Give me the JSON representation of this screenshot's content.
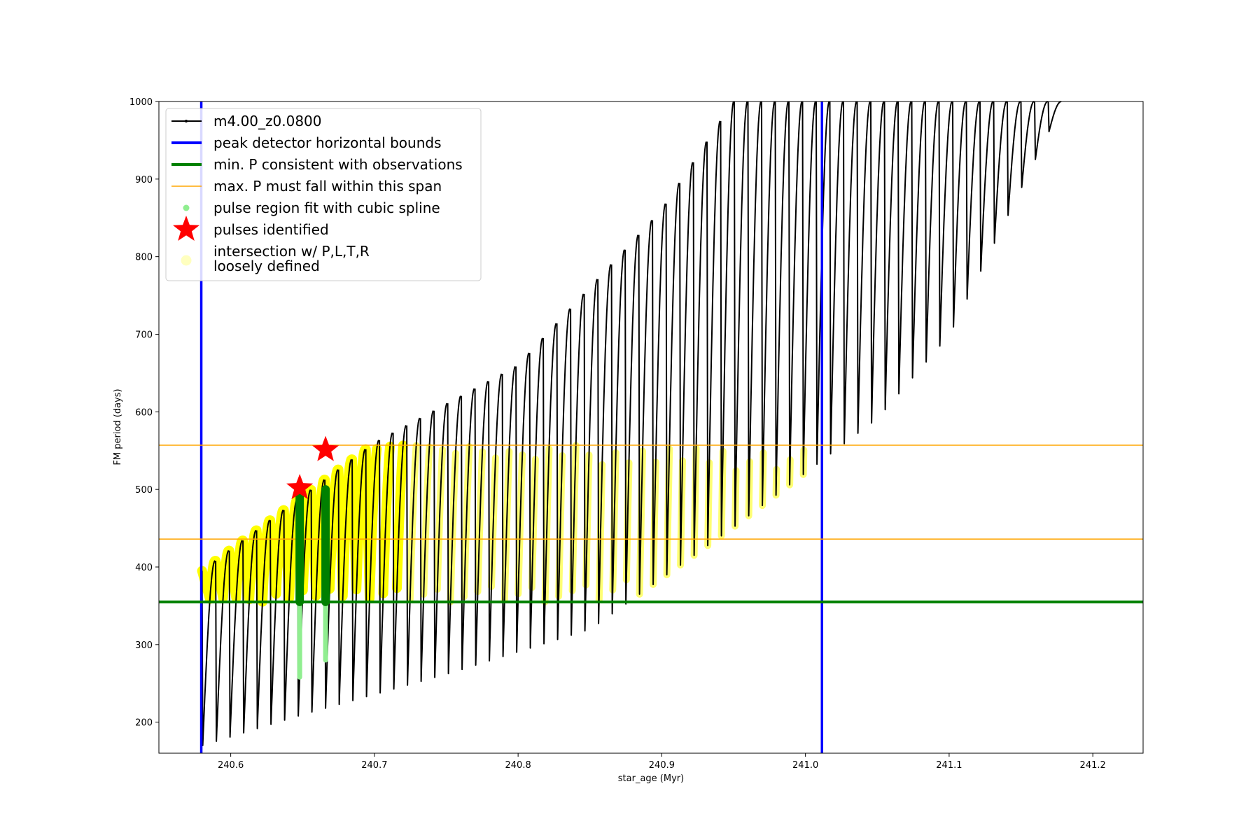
{
  "chart_data": {
    "type": "line",
    "title": "",
    "xlabel": "star_age (Myr)",
    "ylabel": "FM period (days)",
    "xlim": [
      240.55,
      241.235
    ],
    "ylim": [
      160,
      1000
    ],
    "x_ticks": [
      240.6,
      240.7,
      240.8,
      240.9,
      241.0,
      241.1,
      241.2
    ],
    "x_tick_labels": [
      "240.6",
      "240.7",
      "240.8",
      "240.9",
      "241.0",
      "241.1",
      "241.2"
    ],
    "y_ticks": [
      200,
      300,
      400,
      500,
      600,
      700,
      800,
      900,
      1000
    ],
    "y_tick_labels": [
      "200",
      "300",
      "400",
      "500",
      "600",
      "700",
      "800",
      "900",
      "1000"
    ],
    "grid": false,
    "legend_position": "top-left",
    "colors": {
      "track": "#000000",
      "bounds": "#0000ff",
      "min_period": "#008000",
      "max_period": "#ffa500",
      "spline": "#90ee90",
      "spline_dark": "#008000",
      "pulses": "#ff0000",
      "intersection": "#ffff00"
    },
    "series": [
      {
        "name": "m4.00_z0.0800",
        "kind": "pulse_track",
        "trend_low": [
          [
            240.58,
            170
          ],
          [
            240.65,
            210
          ],
          [
            240.75,
            262
          ],
          [
            240.85,
            320
          ],
          [
            240.95,
            452
          ],
          [
            241.05,
            592
          ],
          [
            241.1,
            700
          ],
          [
            241.17,
            965
          ]
        ],
        "trend_high": [
          [
            240.58,
            395
          ],
          [
            240.7,
            560
          ],
          [
            240.8,
            660
          ],
          [
            240.9,
            860
          ],
          [
            240.95,
            1000
          ],
          [
            241.17,
            1000
          ]
        ],
        "pulse_spacing_myr": 0.0095
      },
      {
        "name": "peak detector horizontal bounds",
        "kind": "vline",
        "x": [
          240.5795,
          241.0115
        ]
      },
      {
        "name": "min. P consistent with observations",
        "kind": "hline",
        "y": [
          355
        ]
      },
      {
        "name": "max. P must fall within this span",
        "kind": "hline",
        "y": [
          436,
          557
        ]
      },
      {
        "name": "pulse region fit with cubic spline",
        "kind": "vsegments",
        "segments": [
          [
            240.648,
            258,
            500
          ],
          [
            240.666,
            280,
            500
          ]
        ]
      },
      {
        "name": "pulses identified",
        "kind": "points",
        "points": [
          [
            240.648,
            502
          ],
          [
            240.666,
            551
          ]
        ]
      },
      {
        "name": "intersection w/ P,L,T,R\nloosely defined",
        "kind": "region",
        "y_range": [
          355,
          557
        ],
        "x_range": [
          240.58,
          241.012
        ]
      }
    ]
  },
  "legend": {
    "entries": [
      {
        "label": "m4.00_z0.0800",
        "symbol": "line-dots"
      },
      {
        "label": "peak detector horizontal bounds",
        "symbol": "blue-line"
      },
      {
        "label": "min. P consistent with observations",
        "symbol": "green-line"
      },
      {
        "label": "max. P must fall within this span",
        "symbol": "orange-line"
      },
      {
        "label": "pulse region fit with cubic spline",
        "symbol": "green-dot"
      },
      {
        "label": "pulses identified",
        "symbol": "red-star"
      },
      {
        "label": "intersection w/ P,L,T,R",
        "label2": "loosely defined",
        "symbol": "yellow-dot"
      }
    ]
  }
}
